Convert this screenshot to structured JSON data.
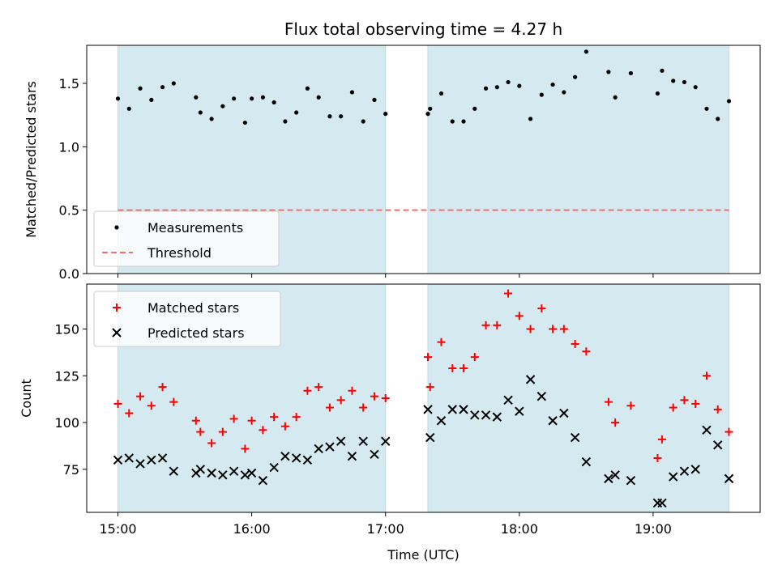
{
  "chart_data": [
    {
      "type": "scatter",
      "title": "Flux total observing time = 4.27 h",
      "ylabel": "Matched/Predicted stars",
      "xlabel": "",
      "ylim": [
        0,
        1.8
      ],
      "xlim": [
        "14:46",
        "19:48"
      ],
      "yticks": [
        "0.0",
        "0.5",
        "1.0",
        "1.5"
      ],
      "shaded_intervals": [
        [
          "15:00",
          "17:00"
        ],
        [
          "17:19",
          "19:34"
        ]
      ],
      "legend": {
        "placement": "lower-left",
        "entries": [
          "Measurements",
          "Threshold"
        ]
      },
      "threshold": {
        "name": "Threshold",
        "value": 0.5,
        "x_range": [
          "15:00",
          "19:34"
        ],
        "color": "#f07070",
        "style": "dashed"
      },
      "series": [
        {
          "name": "Measurements",
          "color": "#000000",
          "marker": "dot",
          "points": [
            [
              "15:00",
              1.38
            ],
            [
              "15:05",
              1.3
            ],
            [
              "15:10",
              1.46
            ],
            [
              "15:15",
              1.37
            ],
            [
              "15:20",
              1.47
            ],
            [
              "15:25",
              1.5
            ],
            [
              "15:35",
              1.39
            ],
            [
              "15:37",
              1.27
            ],
            [
              "15:42",
              1.22
            ],
            [
              "15:47",
              1.32
            ],
            [
              "15:52",
              1.38
            ],
            [
              "15:57",
              1.19
            ],
            [
              "16:00",
              1.38
            ],
            [
              "16:05",
              1.39
            ],
            [
              "16:10",
              1.35
            ],
            [
              "16:15",
              1.2
            ],
            [
              "16:20",
              1.27
            ],
            [
              "16:25",
              1.46
            ],
            [
              "16:30",
              1.39
            ],
            [
              "16:35",
              1.24
            ],
            [
              "16:40",
              1.24
            ],
            [
              "16:45",
              1.43
            ],
            [
              "16:50",
              1.2
            ],
            [
              "16:55",
              1.37
            ],
            [
              "17:00",
              1.26
            ],
            [
              "17:19",
              1.26
            ],
            [
              "17:20",
              1.3
            ],
            [
              "17:25",
              1.42
            ],
            [
              "17:30",
              1.2
            ],
            [
              "17:35",
              1.2
            ],
            [
              "17:40",
              1.3
            ],
            [
              "17:45",
              1.46
            ],
            [
              "17:50",
              1.47
            ],
            [
              "17:55",
              1.51
            ],
            [
              "18:00",
              1.48
            ],
            [
              "18:05",
              1.22
            ],
            [
              "18:10",
              1.41
            ],
            [
              "18:15",
              1.49
            ],
            [
              "18:20",
              1.43
            ],
            [
              "18:25",
              1.55
            ],
            [
              "18:30",
              1.75
            ],
            [
              "18:40",
              1.59
            ],
            [
              "18:43",
              1.39
            ],
            [
              "18:50",
              1.58
            ],
            [
              "19:02",
              1.42
            ],
            [
              "19:04",
              1.6
            ],
            [
              "19:09",
              1.52
            ],
            [
              "19:14",
              1.51
            ],
            [
              "19:19",
              1.47
            ],
            [
              "19:24",
              1.3
            ],
            [
              "19:29",
              1.22
            ],
            [
              "19:34",
              1.36
            ]
          ]
        }
      ]
    },
    {
      "type": "scatter",
      "title": "",
      "ylabel": "Count",
      "xlabel": "Time (UTC)",
      "ylim": [
        52,
        174
      ],
      "xlim": [
        "14:46",
        "19:48"
      ],
      "xticks": [
        "15:00",
        "16:00",
        "17:00",
        "18:00",
        "19:00"
      ],
      "yticks": [
        "75",
        "100",
        "125",
        "150"
      ],
      "shaded_intervals": [
        [
          "15:00",
          "17:00"
        ],
        [
          "17:19",
          "19:34"
        ]
      ],
      "legend": {
        "placement": "upper-left",
        "entries": [
          "Matched stars",
          "Predicted stars"
        ]
      },
      "series": [
        {
          "name": "Matched stars",
          "color": "#ff0000",
          "marker": "plus",
          "points": [
            [
              "15:00",
              110
            ],
            [
              "15:05",
              105
            ],
            [
              "15:10",
              114
            ],
            [
              "15:15",
              109
            ],
            [
              "15:20",
              119
            ],
            [
              "15:25",
              111
            ],
            [
              "15:35",
              101
            ],
            [
              "15:37",
              95
            ],
            [
              "15:42",
              89
            ],
            [
              "15:47",
              95
            ],
            [
              "15:52",
              102
            ],
            [
              "15:57",
              86
            ],
            [
              "16:00",
              101
            ],
            [
              "16:05",
              96
            ],
            [
              "16:10",
              103
            ],
            [
              "16:15",
              98
            ],
            [
              "16:20",
              103
            ],
            [
              "16:25",
              117
            ],
            [
              "16:30",
              119
            ],
            [
              "16:35",
              108
            ],
            [
              "16:40",
              112
            ],
            [
              "16:45",
              117
            ],
            [
              "16:50",
              108
            ],
            [
              "16:55",
              114
            ],
            [
              "17:00",
              113
            ],
            [
              "17:19",
              135
            ],
            [
              "17:20",
              119
            ],
            [
              "17:25",
              143
            ],
            [
              "17:30",
              129
            ],
            [
              "17:35",
              129
            ],
            [
              "17:40",
              135
            ],
            [
              "17:45",
              152
            ],
            [
              "17:50",
              152
            ],
            [
              "17:55",
              169
            ],
            [
              "18:00",
              157
            ],
            [
              "18:05",
              150
            ],
            [
              "18:10",
              161
            ],
            [
              "18:15",
              150
            ],
            [
              "18:20",
              150
            ],
            [
              "18:25",
              142
            ],
            [
              "18:30",
              138
            ],
            [
              "18:40",
              111
            ],
            [
              "18:43",
              100
            ],
            [
              "18:50",
              109
            ],
            [
              "19:02",
              81
            ],
            [
              "19:04",
              91
            ],
            [
              "19:09",
              108
            ],
            [
              "19:14",
              112
            ],
            [
              "19:19",
              110
            ],
            [
              "19:24",
              125
            ],
            [
              "19:29",
              107
            ],
            [
              "19:34",
              95
            ]
          ]
        },
        {
          "name": "Predicted stars",
          "color": "#000000",
          "marker": "x",
          "points": [
            [
              "15:00",
              80
            ],
            [
              "15:05",
              81
            ],
            [
              "15:10",
              78
            ],
            [
              "15:15",
              80
            ],
            [
              "15:20",
              81
            ],
            [
              "15:25",
              74
            ],
            [
              "15:35",
              73
            ],
            [
              "15:37",
              75
            ],
            [
              "15:42",
              73
            ],
            [
              "15:47",
              72
            ],
            [
              "15:52",
              74
            ],
            [
              "15:57",
              72
            ],
            [
              "16:00",
              73
            ],
            [
              "16:05",
              69
            ],
            [
              "16:10",
              76
            ],
            [
              "16:15",
              82
            ],
            [
              "16:20",
              81
            ],
            [
              "16:25",
              80
            ],
            [
              "16:30",
              86
            ],
            [
              "16:35",
              87
            ],
            [
              "16:40",
              90
            ],
            [
              "16:45",
              82
            ],
            [
              "16:50",
              90
            ],
            [
              "16:55",
              83
            ],
            [
              "17:00",
              90
            ],
            [
              "17:19",
              107
            ],
            [
              "17:20",
              92
            ],
            [
              "17:25",
              101
            ],
            [
              "17:30",
              107
            ],
            [
              "17:35",
              107
            ],
            [
              "17:40",
              104
            ],
            [
              "17:45",
              104
            ],
            [
              "17:50",
              103
            ],
            [
              "17:55",
              112
            ],
            [
              "18:00",
              106
            ],
            [
              "18:05",
              123
            ],
            [
              "18:10",
              114
            ],
            [
              "18:15",
              101
            ],
            [
              "18:20",
              105
            ],
            [
              "18:25",
              92
            ],
            [
              "18:30",
              79
            ],
            [
              "18:40",
              70
            ],
            [
              "18:43",
              72
            ],
            [
              "18:50",
              69
            ],
            [
              "19:02",
              57
            ],
            [
              "19:04",
              57
            ],
            [
              "19:09",
              71
            ],
            [
              "19:14",
              74
            ],
            [
              "19:19",
              75
            ],
            [
              "19:24",
              96
            ],
            [
              "19:29",
              88
            ],
            [
              "19:34",
              70
            ]
          ]
        }
      ]
    }
  ],
  "colors": {
    "shade": "#d4eaf0",
    "axis": "#000000",
    "legend_border": "#cccccc"
  }
}
